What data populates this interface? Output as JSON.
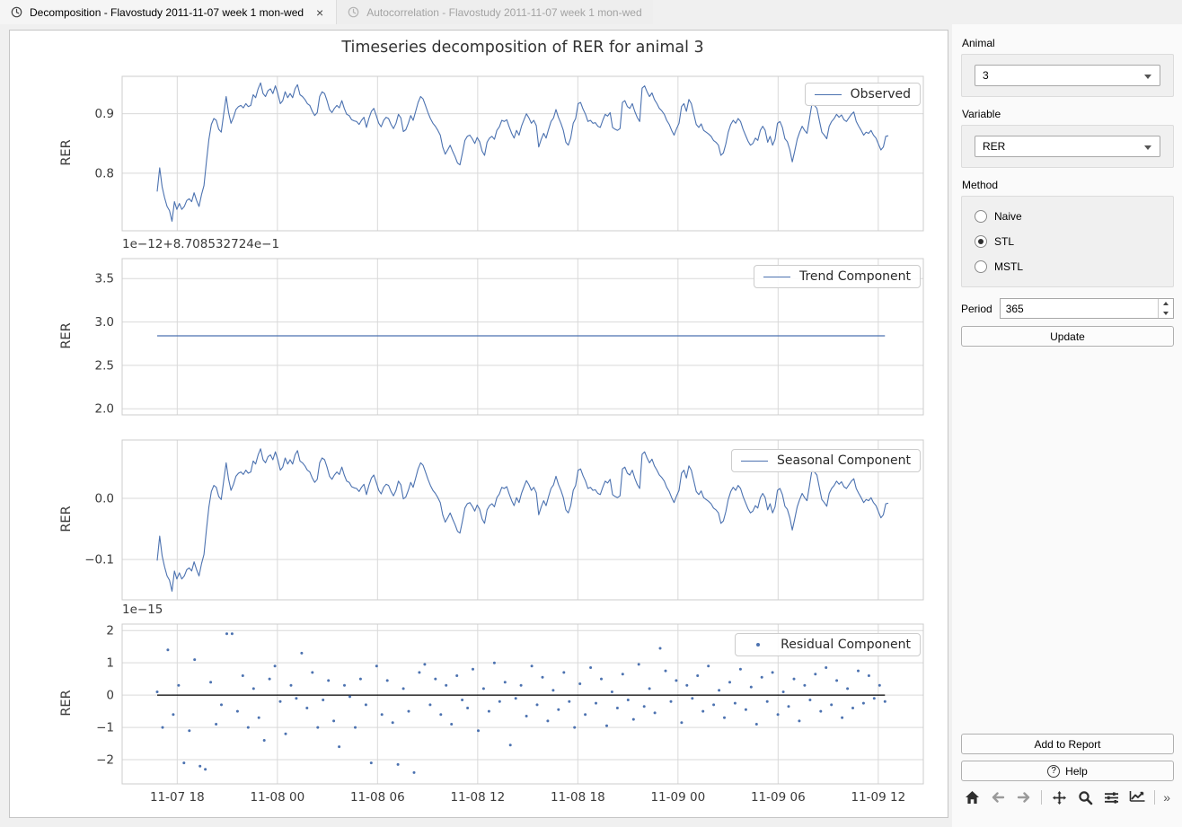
{
  "window": {
    "tabs": [
      {
        "label": "Decomposition - Flavostudy 2011-11-07 week 1 mon-wed",
        "active": true,
        "close_label": "×"
      },
      {
        "label": "Autocorrelation - Flavostudy 2011-11-07 week 1 mon-wed",
        "active": false
      }
    ]
  },
  "figure": {
    "title": "Timeseries decomposition of RER for animal 3"
  },
  "controls": {
    "animal_label": "Animal",
    "animal_value": "3",
    "variable_label": "Variable",
    "variable_value": "RER",
    "method_label": "Method",
    "methods": [
      {
        "label": "Naive",
        "selected": false
      },
      {
        "label": "STL",
        "selected": true
      },
      {
        "label": "MSTL",
        "selected": false
      }
    ],
    "period_label": "Period",
    "period_value": "365",
    "update_label": "Update",
    "add_to_report_label": "Add to Report",
    "help_label": "Help",
    "help_icon_glyph": "?"
  },
  "toolbar": {
    "icons": [
      "home-icon",
      "back-icon",
      "forward-icon",
      "pan-icon",
      "zoom-icon",
      "subplots-icon",
      "customize-icon"
    ],
    "more_label": "»"
  },
  "colors": {
    "series": "#4c72b0",
    "zero_line": "#000000",
    "grid": "#d9d9d9",
    "spine": "#cccccc",
    "tick_text": "#3a3a3a"
  },
  "x_axis": {
    "lim": [
      14.7,
      62.7
    ],
    "ticks": [
      18,
      24,
      30,
      36,
      42,
      48,
      54,
      60
    ],
    "tick_labels": [
      "11-07 18",
      "11-08 00",
      "11-08 06",
      "11-08 12",
      "11-08 18",
      "11-09 00",
      "11-09 06",
      "11-09 12"
    ]
  },
  "chart_data": [
    {
      "type": "line",
      "legend": "Observed",
      "ylabel": "RER",
      "ylim": [
        0.703,
        0.963
      ],
      "yticks": [
        0.8,
        0.9
      ],
      "ytick_labels": [
        "0.8",
        "0.9"
      ],
      "x_start": 16.8,
      "x_end": 60.6,
      "values": [
        0.769,
        0.809,
        0.777,
        0.759,
        0.744,
        0.737,
        0.719,
        0.752,
        0.739,
        0.749,
        0.739,
        0.744,
        0.754,
        0.757,
        0.752,
        0.767,
        0.754,
        0.744,
        0.764,
        0.779,
        0.819,
        0.857,
        0.882,
        0.892,
        0.889,
        0.874,
        0.869,
        0.899,
        0.929,
        0.902,
        0.884,
        0.894,
        0.907,
        0.912,
        0.914,
        0.91,
        0.917,
        0.912,
        0.914,
        0.932,
        0.927,
        0.942,
        0.952,
        0.934,
        0.929,
        0.939,
        0.942,
        0.934,
        0.947,
        0.934,
        0.917,
        0.922,
        0.937,
        0.927,
        0.934,
        0.927,
        0.942,
        0.949,
        0.932,
        0.929,
        0.924,
        0.917,
        0.914,
        0.904,
        0.897,
        0.902,
        0.929,
        0.937,
        0.934,
        0.922,
        0.907,
        0.902,
        0.909,
        0.914,
        0.91,
        0.922,
        0.909,
        0.899,
        0.897,
        0.89,
        0.888,
        0.887,
        0.882,
        0.889,
        0.894,
        0.877,
        0.892,
        0.904,
        0.909,
        0.897,
        0.884,
        0.878,
        0.889,
        0.894,
        0.892,
        0.882,
        0.875,
        0.884,
        0.899,
        0.893,
        0.87,
        0.873,
        0.884,
        0.897,
        0.889,
        0.904,
        0.919,
        0.929,
        0.925,
        0.914,
        0.902,
        0.892,
        0.884,
        0.879,
        0.872,
        0.864,
        0.844,
        0.832,
        0.839,
        0.847,
        0.837,
        0.828,
        0.817,
        0.814,
        0.834,
        0.855,
        0.862,
        0.864,
        0.858,
        0.85,
        0.86,
        0.853,
        0.837,
        0.83,
        0.852,
        0.859,
        0.862,
        0.857,
        0.872,
        0.878,
        0.889,
        0.887,
        0.89,
        0.878,
        0.867,
        0.859,
        0.872,
        0.864,
        0.879,
        0.89,
        0.9,
        0.893,
        0.884,
        0.889,
        0.88,
        0.844,
        0.857,
        0.867,
        0.859,
        0.874,
        0.887,
        0.893,
        0.907,
        0.894,
        0.884,
        0.872,
        0.852,
        0.847,
        0.859,
        0.884,
        0.892,
        0.917,
        0.919,
        0.908,
        0.899,
        0.887,
        0.889,
        0.884,
        0.885,
        0.879,
        0.877,
        0.889,
        0.899,
        0.896,
        0.902,
        0.877,
        0.874,
        0.872,
        0.875,
        0.919,
        0.922,
        0.912,
        0.909,
        0.917,
        0.904,
        0.894,
        0.887,
        0.943,
        0.947,
        0.937,
        0.929,
        0.935,
        0.924,
        0.917,
        0.909,
        0.905,
        0.899,
        0.889,
        0.882,
        0.872,
        0.864,
        0.875,
        0.884,
        0.912,
        0.917,
        0.904,
        0.924,
        0.917,
        0.899,
        0.882,
        0.877,
        0.883,
        0.872,
        0.869,
        0.866,
        0.862,
        0.855,
        0.852,
        0.847,
        0.83,
        0.834,
        0.849,
        0.869,
        0.882,
        0.889,
        0.884,
        0.892,
        0.887,
        0.874,
        0.864,
        0.854,
        0.847,
        0.85,
        0.859,
        0.855,
        0.872,
        0.879,
        0.872,
        0.852,
        0.862,
        0.847,
        0.857,
        0.884,
        0.887,
        0.877,
        0.858,
        0.853,
        0.839,
        0.819,
        0.837,
        0.857,
        0.869,
        0.879,
        0.872,
        0.867,
        0.892,
        0.917,
        0.914,
        0.909,
        0.889,
        0.869,
        0.864,
        0.858,
        0.879,
        0.887,
        0.892,
        0.899,
        0.894,
        0.898,
        0.89,
        0.887,
        0.893,
        0.899,
        0.903,
        0.887,
        0.879,
        0.872,
        0.864,
        0.869,
        0.867,
        0.872,
        0.864,
        0.859,
        0.849,
        0.839,
        0.844,
        0.862,
        0.863
      ]
    },
    {
      "type": "line",
      "legend": "Trend Component",
      "ylabel": "RER",
      "offset_label": "1e−12+8.708532724e−1",
      "ylim": [
        1.93,
        3.73
      ],
      "yticks": [
        2.0,
        2.5,
        3.0,
        3.5
      ],
      "ytick_labels": [
        "2.0",
        "2.5",
        "3.0",
        "3.5"
      ],
      "x_start": 16.8,
      "x_end": 60.4,
      "constant_value": 2.84,
      "base_offset": "8.708532724e-1",
      "unit": "1e-12"
    },
    {
      "type": "line",
      "legend": "Seasonal Component",
      "ylabel": "RER",
      "ylim": [
        -0.166,
        0.0955
      ],
      "yticks": [
        -0.1,
        0.0
      ],
      "ytick_labels": [
        "−0.1",
        "0.0"
      ],
      "x_start": 16.8,
      "x_end": 60.6,
      "derived": "observed_minus_trend",
      "trend_offset": 0.8708532724
    },
    {
      "type": "scatter",
      "legend": "Residual Component",
      "ylabel": "RER",
      "offset_label": "1e−15",
      "ylim": [
        -2.75,
        2.2
      ],
      "yticks": [
        -2,
        -1,
        0,
        1,
        2
      ],
      "ytick_labels": [
        "−2",
        "−1",
        "0",
        "1",
        "2"
      ],
      "x_start": 16.8,
      "x_end": 60.4,
      "zero_line": true,
      "unit": "1e-15",
      "values": [
        0.1,
        -1.0,
        1.4,
        -0.6,
        0.3,
        -2.1,
        -1.1,
        1.1,
        -2.2,
        -2.3,
        0.4,
        -0.9,
        -0.3,
        1.9,
        1.9,
        -0.5,
        0.6,
        -1.0,
        0.2,
        -0.7,
        -1.4,
        0.5,
        0.9,
        -0.2,
        -1.2,
        0.3,
        -0.1,
        1.3,
        -0.4,
        0.7,
        -1.0,
        -0.15,
        0.45,
        -0.8,
        -1.6,
        0.3,
        -0.05,
        -1.0,
        0.5,
        -0.3,
        -2.1,
        0.9,
        -0.6,
        0.45,
        -0.85,
        -2.15,
        0.2,
        -0.5,
        -2.4,
        0.7,
        0.95,
        -0.3,
        0.5,
        -0.6,
        0.3,
        -0.9,
        0.6,
        -0.15,
        -0.4,
        0.8,
        -1.1,
        0.2,
        -0.5,
        1.0,
        -0.2,
        0.4,
        -1.55,
        -0.1,
        0.3,
        -0.65,
        0.9,
        -0.3,
        0.55,
        -0.8,
        0.15,
        -0.45,
        0.7,
        -0.2,
        -1.0,
        0.35,
        -0.6,
        0.85,
        -0.25,
        0.5,
        -0.95,
        0.1,
        -0.4,
        0.65,
        -0.15,
        -0.75,
        0.95,
        -0.35,
        0.2,
        -0.55,
        1.45,
        0.75,
        -0.2,
        0.45,
        -0.85,
        0.3,
        -0.1,
        0.6,
        -0.5,
        0.9,
        -0.3,
        0.15,
        -0.7,
        0.4,
        -0.25,
        0.8,
        -0.45,
        0.25,
        -0.9,
        0.55,
        -0.2,
        0.7,
        -0.6,
        0.1,
        -0.35,
        0.5,
        -0.8,
        0.3,
        -0.15,
        0.65,
        -0.5,
        0.85,
        -0.3,
        0.45,
        -0.7,
        0.2,
        -0.4,
        0.75,
        -0.25,
        0.6,
        -0.1,
        0.3,
        -0.2
      ]
    }
  ]
}
